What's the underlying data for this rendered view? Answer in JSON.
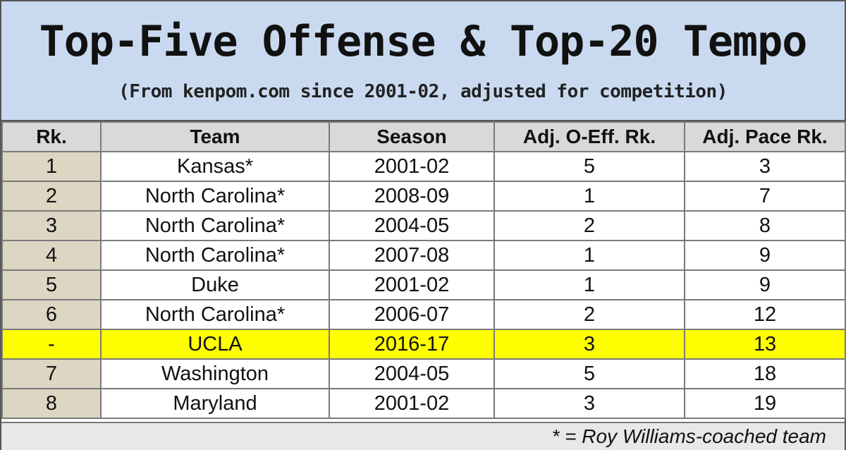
{
  "chart_data": {
    "type": "table",
    "title": "Top-Five Offense & Top-20 Tempo",
    "subtitle": "(From kenpom.com since 2001-02, adjusted for competition)",
    "columns": [
      "Rk.",
      "Team",
      "Season",
      "Adj. O-Eff. Rk.",
      "Adj. Pace Rk."
    ],
    "rows": [
      {
        "rk": "1",
        "team": "Kansas*",
        "season": "2001-02",
        "off": "5",
        "pace": "3",
        "highlight": false
      },
      {
        "rk": "2",
        "team": "North Carolina*",
        "season": "2008-09",
        "off": "1",
        "pace": "7",
        "highlight": false
      },
      {
        "rk": "3",
        "team": "North Carolina*",
        "season": "2004-05",
        "off": "2",
        "pace": "8",
        "highlight": false
      },
      {
        "rk": "4",
        "team": "North Carolina*",
        "season": "2007-08",
        "off": "1",
        "pace": "9",
        "highlight": false
      },
      {
        "rk": "5",
        "team": "Duke",
        "season": "2001-02",
        "off": "1",
        "pace": "9",
        "highlight": false
      },
      {
        "rk": "6",
        "team": "North Carolina*",
        "season": "2006-07",
        "off": "2",
        "pace": "12",
        "highlight": false
      },
      {
        "rk": "-",
        "team": "UCLA",
        "season": "2016-17",
        "off": "3",
        "pace": "13",
        "highlight": true
      },
      {
        "rk": "7",
        "team": "Washington",
        "season": "2004-05",
        "off": "5",
        "pace": "18",
        "highlight": false
      },
      {
        "rk": "8",
        "team": "Maryland",
        "season": "2001-02",
        "off": "3",
        "pace": "19",
        "highlight": false
      }
    ],
    "footnote": "* = Roy Williams-coached team"
  },
  "colors": {
    "header_bg": "#c9daf0",
    "rank_col_bg": "#ddd6c3",
    "highlight_bg": "#ffff00",
    "column_header_bg": "#d9d9d9"
  }
}
